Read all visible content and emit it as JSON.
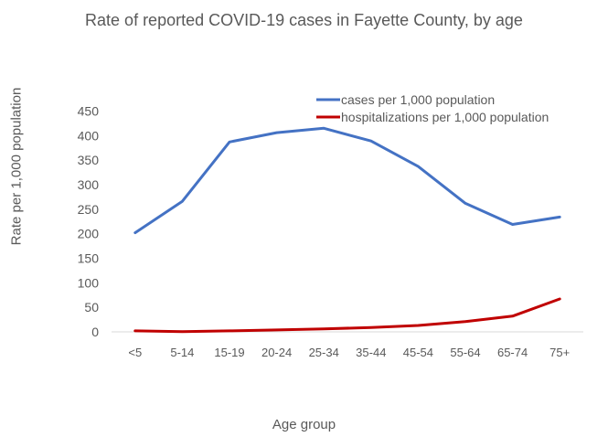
{
  "chart_data": {
    "type": "line",
    "title": "Rate of reported COVID-19 cases in Fayette County, by age",
    "xlabel": "Age group",
    "ylabel": "Rate per 1,000 population",
    "categories": [
      "<5",
      "5-14",
      "15-19",
      "20-24",
      "25-34",
      "35-44",
      "45-54",
      "55-64",
      "65-74",
      "75+"
    ],
    "ylim": [
      0,
      450
    ],
    "yticks": [
      0,
      50,
      100,
      150,
      200,
      250,
      300,
      350,
      400,
      450
    ],
    "grid": false,
    "legend_position": "top-right",
    "series": [
      {
        "name": "cases per 1,000 population",
        "color": "#4472C4",
        "values": [
          202,
          266,
          387,
          406,
          415,
          389,
          337,
          262,
          219,
          234
        ]
      },
      {
        "name": "hospitalizations per 1,000 population",
        "color": "#C00000",
        "values": [
          2,
          0.5,
          2,
          4,
          6,
          9,
          13,
          21,
          32,
          67
        ]
      }
    ]
  }
}
